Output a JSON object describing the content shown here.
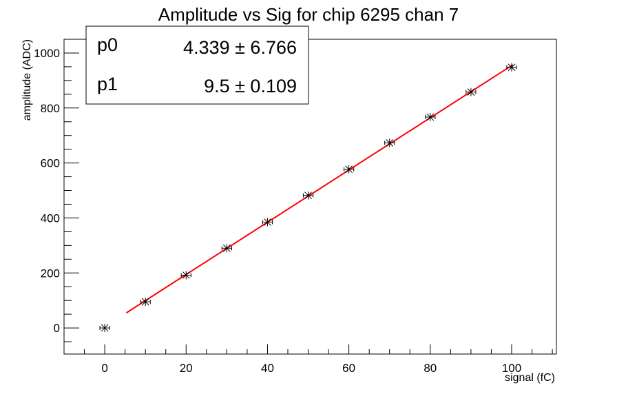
{
  "chart_data": {
    "type": "scatter",
    "title": "Amplitude vs Sig for chip 6295 chan 7",
    "xlabel": "signal (fC)",
    "ylabel": "amplitude (ADC)",
    "xlim": [
      -10,
      111
    ],
    "ylim": [
      -95,
      1050
    ],
    "x_ticks": [
      0,
      20,
      40,
      60,
      80,
      100
    ],
    "y_ticks": [
      0,
      200,
      400,
      600,
      800,
      1000
    ],
    "x_minor_step": 5,
    "y_minor_step": 50,
    "grid": false,
    "points": {
      "x": [
        0,
        10,
        20,
        30,
        40,
        50,
        60,
        70,
        80,
        90,
        100
      ],
      "y": [
        0,
        95,
        192,
        290,
        385,
        482,
        577,
        673,
        767,
        858,
        948
      ],
      "x_err": 1.2,
      "y_err": 4,
      "color": "#000000"
    },
    "fit": {
      "x_range": [
        5.3,
        100.3
      ],
      "p0": 4.339,
      "p1": 9.5,
      "color": "#ff0000"
    },
    "stats_box": {
      "rows": [
        {
          "name": "p0",
          "value": "4.339 ± 6.766"
        },
        {
          "name": "p1",
          "value": "9.5 ± 0.109"
        }
      ]
    }
  }
}
